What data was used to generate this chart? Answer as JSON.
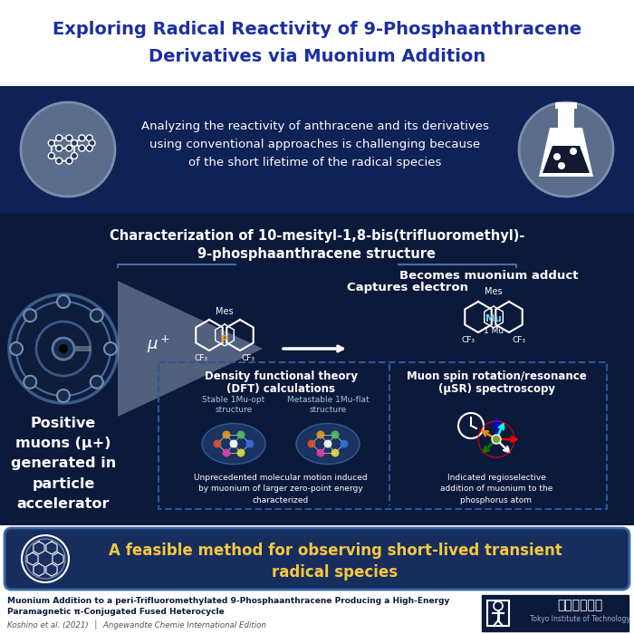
{
  "title_line1": "Exploring Radical Reactivity of 9-Phosphaanthracene",
  "title_line2": "Derivatives via Muonium Addition",
  "title_color": "#1c2fa0",
  "bg_white": "#ffffff",
  "bg_dark": "#0b1a3b",
  "bg_intro": "#0f2255",
  "bg_mid": "#0b1a3b",
  "bg_conclusion": "#162d5e",
  "bg_footer": "#ffffff",
  "intro_text": "Analyzing the reactivity of anthracene and its derivatives\nusing conventional approaches is challenging because\nof the short lifetime of the radical species",
  "section_title_line1": "Characterization of 10-mesityl-1,8-bis(trifluoromethyl)-",
  "section_title_line2": "9-phosphaanthracene structure",
  "left_label": "Positive\nmuons (μ+)\ngenerated in\nparticle\naccelerator",
  "mu_plus": "μ+",
  "captures_text": "Captures electron",
  "becomes_text": "Becomes muonium adduct",
  "arrow_color": "#ffffff",
  "dft_title_line1": "Density functional theory",
  "dft_title_line2": "(DFT) calculations",
  "dft_sub1": "Stable 1Mu-opt\nstructure",
  "dft_sub2": "Metastable 1Mu-flat\nstructure",
  "dft_caption": "Unprecedented molecular motion induced\nby muonium of larger zero-point energy\ncharacterized",
  "musr_title_line1": "Muon spin rotation/resonance",
  "musr_title_line2": "(μSR) spectroscopy",
  "musr_caption": "Indicated regioselective\naddition of muonium to the\nphosphorus atom",
  "conclusion_text": "A feasible method for observing short-lived transient\nradical species",
  "conclusion_color": "#f5c842",
  "footer_bold1": "Muonium Addition to a peri-Trifluoromethylated 9-Phosphaanthracene Producing a High-Energy",
  "footer_bold2": "Paramagnetic π-Conjugated Fused Heterocycle",
  "footer_italic": "Koshino et al. (2021)  │  Angewandte Chemie International Edition",
  "inst_jp": "東京工業大学",
  "inst_en": "Tokyo Institute of Technology",
  "white": "#ffffff",
  "light_blue": "#a8c4e0",
  "cyan": "#7ecfea",
  "dft_ellipse_color": "#2a4a7a",
  "box_border": "#2e5499"
}
